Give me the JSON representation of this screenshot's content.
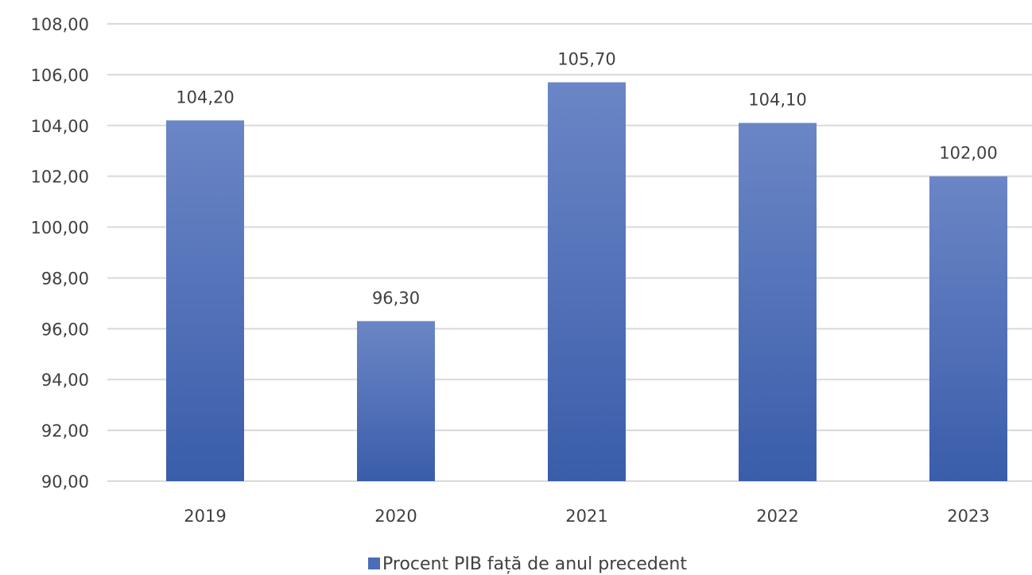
{
  "chart_data": {
    "type": "bar",
    "categories": [
      "2019",
      "2020",
      "2021",
      "2022",
      "2023"
    ],
    "series": [
      {
        "name": "Procent PIB față de anul precedent",
        "values": [
          104.2,
          96.3,
          105.7,
          104.1,
          102.0
        ],
        "value_labels": [
          "104,20",
          "96,30",
          "105,70",
          "104,10",
          "102,00"
        ]
      }
    ],
    "y_ticks": [
      "90,00",
      "92,00",
      "94,00",
      "96,00",
      "98,00",
      "100,00",
      "102,00",
      "104,00",
      "106,00",
      "108,00"
    ],
    "ylim": [
      90,
      108
    ],
    "y_step": 2,
    "grid": true,
    "legend_position": "bottom",
    "title": "",
    "xlabel": "",
    "ylabel": "",
    "colors": {
      "bar_top": "#6b86c6",
      "bar_bottom": "#3a5daa",
      "grid": "#d9d9d9",
      "text": "#404040",
      "legend_swatch": "#4a6db5"
    }
  }
}
